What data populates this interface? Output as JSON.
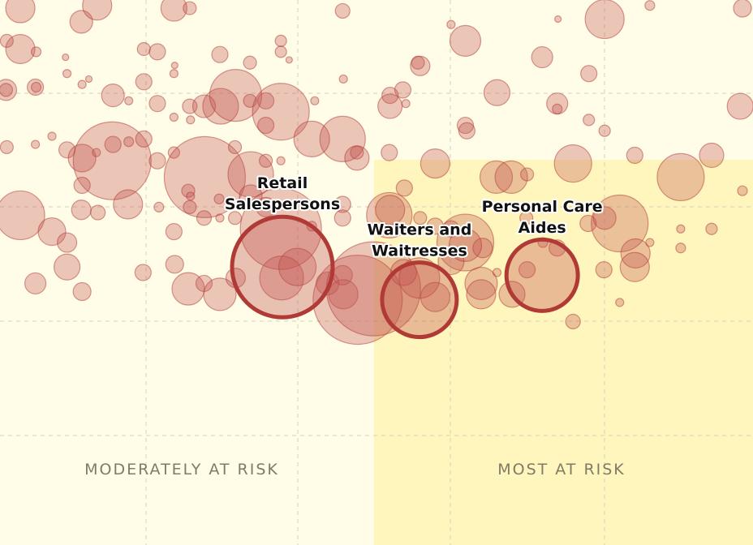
{
  "colors": {
    "background": "#fffde8",
    "most_at_risk_fill": "#fff6bd",
    "bubble_fill": "#c0504d",
    "bubble_stroke": "#b03a36",
    "grid": "#d4d0c0"
  },
  "chart_data": {
    "type": "scatter",
    "title": "",
    "xlabel": "",
    "ylabel": "",
    "grid": true,
    "zones": [
      {
        "label": "MODERATELY AT RISK"
      },
      {
        "label": "MOST AT RISK"
      }
    ],
    "highlighted": [
      {
        "label_lines": [
          "Retail",
          "Salespersons"
        ],
        "x": 0.375,
        "y": 0.51,
        "r": 62
      },
      {
        "label_lines": [
          "Waiters and",
          "Waitresses"
        ],
        "x": 0.557,
        "y": 0.45,
        "r": 46
      },
      {
        "label_lines": [
          "Personal Care",
          "Aides"
        ],
        "x": 0.72,
        "y": 0.495,
        "r": 44
      }
    ],
    "points": [
      [
        0.027,
        0.985,
        18
      ],
      [
        0.108,
        0.96,
        14
      ],
      [
        0.129,
        0.99,
        18
      ],
      [
        0.231,
        0.985,
        16
      ],
      [
        0.252,
        0.985,
        8
      ],
      [
        0.455,
        0.98,
        9
      ],
      [
        0.599,
        0.955,
        5
      ],
      [
        0.803,
        0.965,
        24
      ],
      [
        0.863,
        0.99,
        6
      ],
      [
        0.986,
        0.985,
        11
      ],
      [
        0.009,
        0.925,
        8
      ],
      [
        0.027,
        0.91,
        18
      ],
      [
        0.048,
        0.905,
        6
      ],
      [
        0.087,
        0.895,
        4
      ],
      [
        0.191,
        0.91,
        8
      ],
      [
        0.209,
        0.905,
        10
      ],
      [
        0.232,
        0.88,
        4
      ],
      [
        0.292,
        0.9,
        10
      ],
      [
        0.332,
        0.885,
        8
      ],
      [
        0.373,
        0.925,
        7
      ],
      [
        0.373,
        0.905,
        7
      ],
      [
        0.384,
        0.89,
        4
      ],
      [
        0.555,
        0.885,
        8
      ],
      [
        0.618,
        0.925,
        19
      ],
      [
        0.72,
        0.895,
        13
      ],
      [
        0.741,
        0.965,
        4
      ],
      [
        0.782,
        0.865,
        10
      ],
      [
        0.008,
        0.835,
        13
      ],
      [
        0.008,
        0.835,
        8
      ],
      [
        0.047,
        0.84,
        10
      ],
      [
        0.048,
        0.84,
        6
      ],
      [
        0.089,
        0.865,
        5
      ],
      [
        0.109,
        0.845,
        5
      ],
      [
        0.118,
        0.855,
        4
      ],
      [
        0.15,
        0.825,
        14
      ],
      [
        0.171,
        0.815,
        5
      ],
      [
        0.191,
        0.85,
        10
      ],
      [
        0.209,
        0.81,
        10
      ],
      [
        0.231,
        0.865,
        5
      ],
      [
        0.252,
        0.805,
        9
      ],
      [
        0.271,
        0.805,
        14
      ],
      [
        0.293,
        0.805,
        22
      ],
      [
        0.313,
        0.825,
        32
      ],
      [
        0.332,
        0.815,
        8
      ],
      [
        0.353,
        0.815,
        10
      ],
      [
        0.373,
        0.795,
        35
      ],
      [
        0.418,
        0.815,
        5
      ],
      [
        0.456,
        0.855,
        5
      ],
      [
        0.518,
        0.825,
        10
      ],
      [
        0.535,
        0.835,
        10
      ],
      [
        0.518,
        0.805,
        15
      ],
      [
        0.539,
        0.81,
        5
      ],
      [
        0.558,
        0.879,
        12
      ],
      [
        0.66,
        0.83,
        16
      ],
      [
        0.74,
        0.81,
        13
      ],
      [
        0.74,
        0.8,
        6
      ],
      [
        0.983,
        0.805,
        16
      ],
      [
        0.009,
        0.73,
        8
      ],
      [
        0.047,
        0.735,
        5
      ],
      [
        0.069,
        0.75,
        5
      ],
      [
        0.089,
        0.725,
        10
      ],
      [
        0.109,
        0.71,
        17
      ],
      [
        0.128,
        0.72,
        5
      ],
      [
        0.149,
        0.705,
        48
      ],
      [
        0.15,
        0.735,
        10
      ],
      [
        0.171,
        0.74,
        6
      ],
      [
        0.191,
        0.745,
        10
      ],
      [
        0.209,
        0.705,
        10
      ],
      [
        0.231,
        0.785,
        5
      ],
      [
        0.231,
        0.72,
        7
      ],
      [
        0.253,
        0.78,
        5
      ],
      [
        0.272,
        0.675,
        50
      ],
      [
        0.312,
        0.73,
        8
      ],
      [
        0.333,
        0.68,
        28
      ],
      [
        0.353,
        0.705,
        8
      ],
      [
        0.353,
        0.77,
        10
      ],
      [
        0.373,
        0.705,
        5
      ],
      [
        0.414,
        0.745,
        22
      ],
      [
        0.455,
        0.745,
        28
      ],
      [
        0.474,
        0.72,
        8
      ],
      [
        0.474,
        0.71,
        15
      ],
      [
        0.517,
        0.72,
        10
      ],
      [
        0.578,
        0.7,
        18
      ],
      [
        0.618,
        0.77,
        10
      ],
      [
        0.62,
        0.76,
        10
      ],
      [
        0.659,
        0.675,
        20
      ],
      [
        0.679,
        0.675,
        20
      ],
      [
        0.7,
        0.68,
        8
      ],
      [
        0.761,
        0.7,
        23
      ],
      [
        0.782,
        0.78,
        7
      ],
      [
        0.803,
        0.76,
        7
      ],
      [
        0.843,
        0.715,
        10
      ],
      [
        0.904,
        0.675,
        29
      ],
      [
        0.945,
        0.715,
        15
      ],
      [
        0.027,
        0.605,
        30
      ],
      [
        0.069,
        0.575,
        17
      ],
      [
        0.089,
        0.555,
        12
      ],
      [
        0.108,
        0.615,
        12
      ],
      [
        0.109,
        0.66,
        10
      ],
      [
        0.13,
        0.61,
        9
      ],
      [
        0.17,
        0.625,
        18
      ],
      [
        0.211,
        0.62,
        6
      ],
      [
        0.231,
        0.575,
        10
      ],
      [
        0.25,
        0.65,
        8
      ],
      [
        0.253,
        0.64,
        5
      ],
      [
        0.252,
        0.62,
        8
      ],
      [
        0.271,
        0.6,
        9
      ],
      [
        0.291,
        0.635,
        6
      ],
      [
        0.292,
        0.6,
        5
      ],
      [
        0.312,
        0.6,
        8
      ],
      [
        0.333,
        0.64,
        14
      ],
      [
        0.353,
        0.62,
        12
      ],
      [
        0.373,
        0.58,
        50
      ],
      [
        0.414,
        0.585,
        6
      ],
      [
        0.455,
        0.625,
        10
      ],
      [
        0.455,
        0.6,
        10
      ],
      [
        0.517,
        0.605,
        28
      ],
      [
        0.518,
        0.615,
        18
      ],
      [
        0.537,
        0.655,
        10
      ],
      [
        0.558,
        0.6,
        8
      ],
      [
        0.578,
        0.585,
        10
      ],
      [
        0.599,
        0.58,
        10
      ],
      [
        0.618,
        0.555,
        35
      ],
      [
        0.641,
        0.545,
        12
      ],
      [
        0.699,
        0.6,
        8
      ],
      [
        0.721,
        0.555,
        6
      ],
      [
        0.74,
        0.545,
        10
      ],
      [
        0.781,
        0.59,
        10
      ],
      [
        0.803,
        0.6,
        14
      ],
      [
        0.823,
        0.59,
        35
      ],
      [
        0.844,
        0.535,
        18
      ],
      [
        0.863,
        0.555,
        5
      ],
      [
        0.904,
        0.58,
        5
      ],
      [
        0.945,
        0.58,
        7
      ],
      [
        0.986,
        0.65,
        6
      ],
      [
        0.047,
        0.48,
        13
      ],
      [
        0.089,
        0.51,
        16
      ],
      [
        0.109,
        0.465,
        11
      ],
      [
        0.19,
        0.5,
        10
      ],
      [
        0.232,
        0.515,
        11
      ],
      [
        0.25,
        0.47,
        20
      ],
      [
        0.271,
        0.48,
        10
      ],
      [
        0.292,
        0.46,
        20
      ],
      [
        0.313,
        0.49,
        12
      ],
      [
        0.374,
        0.49,
        27
      ],
      [
        0.395,
        0.51,
        23
      ],
      [
        0.435,
        0.48,
        14
      ],
      [
        0.455,
        0.495,
        12
      ],
      [
        0.456,
        0.46,
        18
      ],
      [
        0.475,
        0.45,
        55
      ],
      [
        0.496,
        0.47,
        58
      ],
      [
        0.536,
        0.5,
        16
      ],
      [
        0.557,
        0.49,
        25
      ],
      [
        0.578,
        0.455,
        18
      ],
      [
        0.599,
        0.52,
        16
      ],
      [
        0.618,
        0.55,
        20
      ],
      [
        0.639,
        0.48,
        20
      ],
      [
        0.639,
        0.46,
        18
      ],
      [
        0.66,
        0.5,
        5
      ],
      [
        0.68,
        0.46,
        16
      ],
      [
        0.7,
        0.505,
        10
      ],
      [
        0.761,
        0.41,
        9
      ],
      [
        0.802,
        0.505,
        10
      ],
      [
        0.823,
        0.445,
        5
      ],
      [
        0.843,
        0.51,
        18
      ],
      [
        0.904,
        0.545,
        6
      ]
    ]
  }
}
